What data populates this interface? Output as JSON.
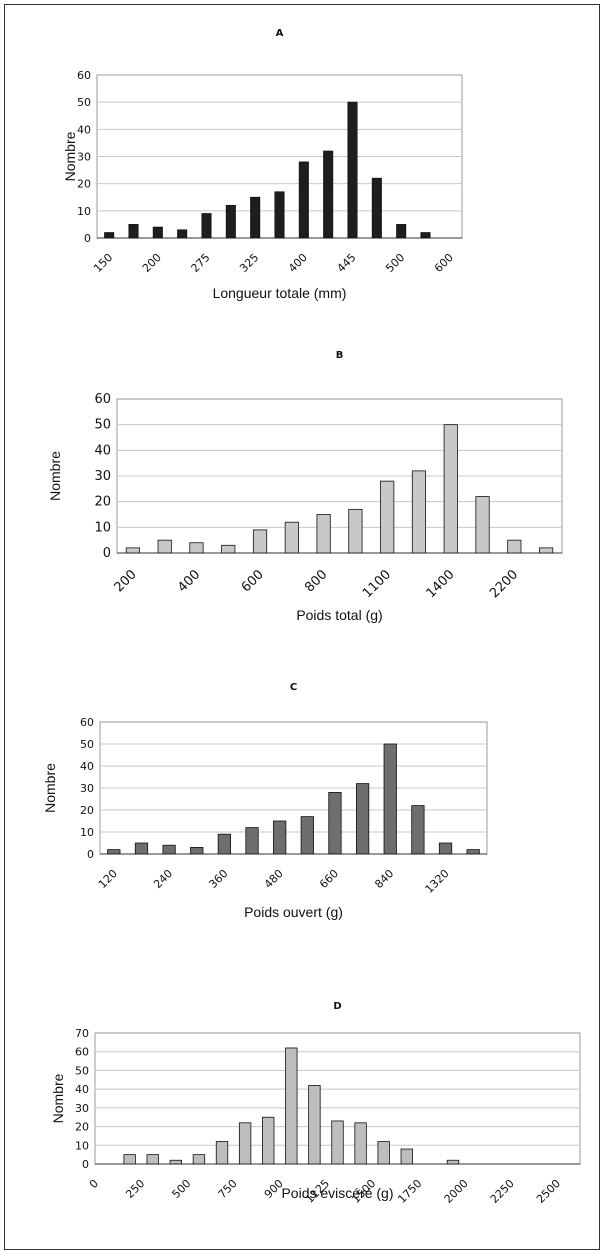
{
  "chart_data": [
    {
      "type": "bar",
      "title": "A",
      "xlabel": "Longueur totale (mm)",
      "ylabel": "Nombre",
      "ylim": [
        0,
        60
      ],
      "yticks": [
        0,
        10,
        20,
        30,
        40,
        50,
        60
      ],
      "categories": [
        "150",
        "",
        "200",
        "",
        "275",
        "",
        "325",
        "",
        "400",
        "",
        "445",
        "",
        "500",
        "",
        "600"
      ],
      "values": [
        2,
        5,
        4,
        3,
        9,
        12,
        15,
        17,
        28,
        32,
        50,
        22,
        5,
        2,
        0
      ],
      "bar_color": "#1e1e1e",
      "grid": true
    },
    {
      "type": "bar",
      "title": "B",
      "xlabel": "Poids total (g)",
      "ylabel": "Nombre",
      "ylim": [
        0,
        60
      ],
      "yticks": [
        0,
        10,
        20,
        30,
        40,
        50,
        60
      ],
      "categories": [
        "200",
        "",
        "400",
        "",
        "600",
        "",
        "800",
        "",
        "1100",
        "",
        "1400",
        "",
        "2200",
        ""
      ],
      "values": [
        2,
        5,
        4,
        3,
        9,
        12,
        15,
        17,
        28,
        32,
        50,
        22,
        5,
        2
      ],
      "bar_color": "#c8c8c8",
      "grid": true
    },
    {
      "type": "bar",
      "title": "C",
      "xlabel": "Poids ouvert (g)",
      "ylabel": "Nombre",
      "ylim": [
        0,
        60
      ],
      "yticks": [
        0,
        10,
        20,
        30,
        40,
        50,
        60
      ],
      "categories": [
        "120",
        "",
        "240",
        "",
        "360",
        "",
        "480",
        "",
        "660",
        "",
        "840",
        "",
        "1320",
        ""
      ],
      "values": [
        2,
        5,
        4,
        3,
        9,
        12,
        15,
        17,
        28,
        32,
        50,
        22,
        5,
        2
      ],
      "bar_color": "#6e6e6e",
      "grid": true
    },
    {
      "type": "bar",
      "title": "D",
      "xlabel": "Poids éviscéré (g)",
      "ylabel": "Nombre",
      "ylim": [
        0,
        70
      ],
      "yticks": [
        0,
        10,
        20,
        30,
        40,
        50,
        60,
        70
      ],
      "categories": [
        "0",
        "",
        "250",
        "",
        "500",
        "",
        "750",
        "",
        "900",
        "",
        "1125",
        "",
        "1500",
        "",
        "1750",
        "",
        "2000",
        "",
        "2250",
        "",
        "2500"
      ],
      "values": [
        0,
        5,
        5,
        2,
        5,
        12,
        22,
        25,
        62,
        42,
        23,
        22,
        12,
        8,
        0,
        2,
        0,
        0,
        0,
        0,
        0
      ],
      "bar_color": "#bdbdbd",
      "grid": true
    }
  ]
}
